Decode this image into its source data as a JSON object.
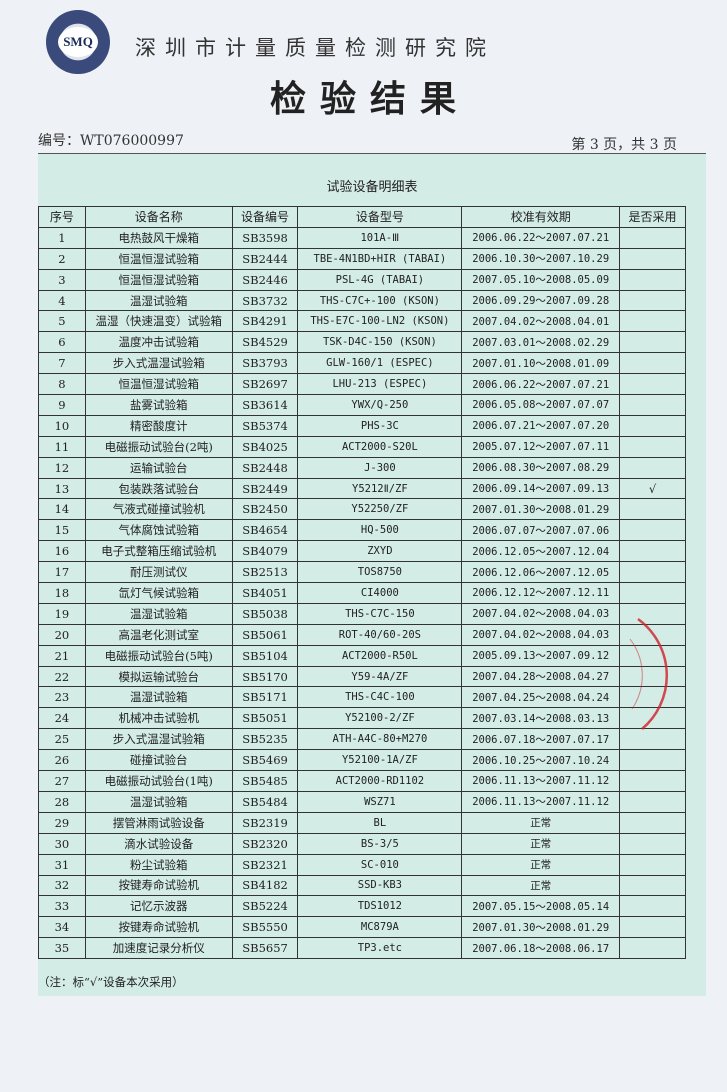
{
  "header": {
    "logo_text": "SMQ",
    "organization": "深圳市计量质量检测研究院",
    "title": "检验结果",
    "doc_number": "编号：WT076000997",
    "page_info": "第 3 页，共 3 页"
  },
  "table": {
    "title": "试验设备明细表",
    "columns": [
      "序号",
      "设备名称",
      "设备编号",
      "设备型号",
      "校准有效期",
      "是否采用"
    ],
    "rows": [
      [
        "1",
        "电热鼓风干燥箱",
        "SB3598",
        "101A-Ⅲ",
        "2006.06.22～2007.07.21",
        ""
      ],
      [
        "2",
        "恒温恒湿试验箱",
        "SB2444",
        "TBE-4N1BD+HIR (TABAI)",
        "2006.10.30～2007.10.29",
        ""
      ],
      [
        "3",
        "恒温恒湿试验箱",
        "SB2446",
        "PSL-4G  (TABAI)",
        "2007.05.10～2008.05.09",
        ""
      ],
      [
        "4",
        "温湿试验箱",
        "SB3732",
        "THS-C7C+-100 (KSON)",
        "2006.09.29～2007.09.28",
        ""
      ],
      [
        "5",
        "温湿（快速温变）试验箱",
        "SB4291",
        "THS-E7C-100-LN2 (KSON)",
        "2007.04.02～2008.04.01",
        ""
      ],
      [
        "6",
        "温度冲击试验箱",
        "SB4529",
        "TSK-D4C-150 (KSON)",
        "2007.03.01～2008.02.29",
        ""
      ],
      [
        "7",
        "步入式温湿试验箱",
        "SB3793",
        "GLW-160/1 (ESPEC)",
        "2007.01.10～2008.01.09",
        ""
      ],
      [
        "8",
        "恒温恒湿试验箱",
        "SB2697",
        "LHU-213 (ESPEC)",
        "2006.06.22～2007.07.21",
        ""
      ],
      [
        "9",
        "盐雾试验箱",
        "SB3614",
        "YWX/Q-250",
        "2006.05.08～2007.07.07",
        ""
      ],
      [
        "10",
        "精密酸度计",
        "SB5374",
        "PHS-3C",
        "2006.07.21～2007.07.20",
        ""
      ],
      [
        "11",
        "电磁振动试验台(2吨)",
        "SB4025",
        "ACT2000-S20L",
        "2005.07.12～2007.07.11",
        ""
      ],
      [
        "12",
        "运输试验台",
        "SB2448",
        "J-300",
        "2006.08.30～2007.08.29",
        ""
      ],
      [
        "13",
        "包装跌落试验台",
        "SB2449",
        "Y5212Ⅱ/ZF",
        "2006.09.14～2007.09.13",
        "√"
      ],
      [
        "14",
        "气液式碰撞试验机",
        "SB2450",
        "Y52250/ZF",
        "2007.01.30～2008.01.29",
        ""
      ],
      [
        "15",
        "气体腐蚀试验箱",
        "SB4654",
        "HQ-500",
        "2006.07.07～2007.07.06",
        ""
      ],
      [
        "16",
        "电子式整箱压缩试验机",
        "SB4079",
        "ZXYD",
        "2006.12.05～2007.12.04",
        ""
      ],
      [
        "17",
        "耐压测试仪",
        "SB2513",
        "TOS8750",
        "2006.12.06～2007.12.05",
        ""
      ],
      [
        "18",
        "氙灯气候试验箱",
        "SB4051",
        "CI4000",
        "2006.12.12～2007.12.11",
        ""
      ],
      [
        "19",
        "温湿试验箱",
        "SB5038",
        "THS-C7C-150",
        "2007.04.02～2008.04.03",
        ""
      ],
      [
        "20",
        "高温老化测试室",
        "SB5061",
        "ROT-40/60-20S",
        "2007.04.02～2008.04.03",
        ""
      ],
      [
        "21",
        "电磁振动试验台(5吨)",
        "SB5104",
        "ACT2000-R50L",
        "2005.09.13～2007.09.12",
        ""
      ],
      [
        "22",
        "模拟运输试验台",
        "SB5170",
        "Y59-4A/ZF",
        "2007.04.28～2008.04.27",
        ""
      ],
      [
        "23",
        "温湿试验箱",
        "SB5171",
        "THS-C4C-100",
        "2007.04.25～2008.04.24",
        ""
      ],
      [
        "24",
        "机械冲击试验机",
        "SB5051",
        "Y52100-2/ZF",
        "2007.03.14～2008.03.13",
        ""
      ],
      [
        "25",
        "步入式温湿试验箱",
        "SB5235",
        "ATH-A4C-80+M270",
        "2006.07.18～2007.07.17",
        ""
      ],
      [
        "26",
        "碰撞试验台",
        "SB5469",
        "Y52100-1A/ZF",
        "2006.10.25～2007.10.24",
        ""
      ],
      [
        "27",
        "电磁振动试验台(1吨)",
        "SB5485",
        "ACT2000-RD1102",
        "2006.11.13～2007.11.12",
        ""
      ],
      [
        "28",
        "温湿试验箱",
        "SB5484",
        "WSZ71",
        "2006.11.13～2007.11.12",
        ""
      ],
      [
        "29",
        "摆管淋雨试验设备",
        "SB2319",
        "BL",
        "正常",
        ""
      ],
      [
        "30",
        "滴水试验设备",
        "SB2320",
        "BS-3/5",
        "正常",
        ""
      ],
      [
        "31",
        "粉尘试验箱",
        "SB2321",
        "SC-010",
        "正常",
        ""
      ],
      [
        "32",
        "按键寿命试验机",
        "SB4182",
        "SSD-KB3",
        "正常",
        ""
      ],
      [
        "33",
        "记忆示波器",
        "SB5224",
        "TDS1012",
        "2007.05.15～2008.05.14",
        ""
      ],
      [
        "34",
        "按键寿命试验机",
        "SB5550",
        "MC879A",
        "2007.01.30～2008.01.29",
        ""
      ],
      [
        "35",
        "加速度记录分析仪",
        "SB5657",
        "TP3.etc",
        "2007.06.18～2008.06.17",
        ""
      ]
    ],
    "note": "（注：标“√”设备本次采用）"
  },
  "colors": {
    "panel": "#d3ece6",
    "stamp": "#d0202a"
  }
}
